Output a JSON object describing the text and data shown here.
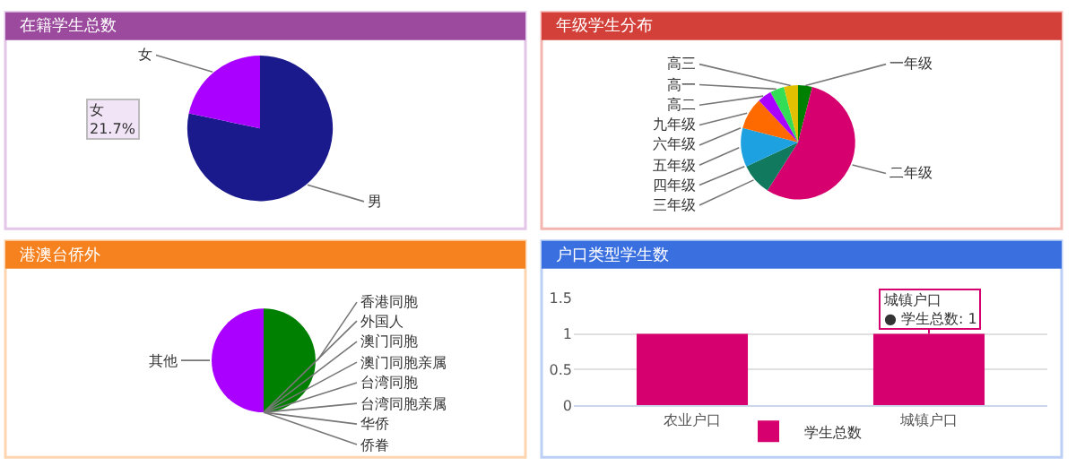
{
  "chart_data": [
    {
      "type": "pie",
      "title": "在籍学生总数",
      "categories": [
        "男",
        "女"
      ],
      "values": [
        78.3,
        21.7
      ],
      "colors": [
        "#1a1a8c",
        "#aa00ff"
      ],
      "annotations": [
        "女\n21.7%"
      ]
    },
    {
      "type": "pie",
      "title": "年级学生分布",
      "categories": [
        "一年级",
        "二年级",
        "三年级",
        "四年级",
        "五年级",
        "六年级",
        "九年级",
        "高二",
        "高一",
        "高三"
      ],
      "values": [
        4,
        55,
        9,
        0,
        11,
        0,
        9,
        4,
        4,
        4
      ],
      "colors": [
        "#008000",
        "#d6006e",
        "#117a5e",
        "#5b2c8e",
        "#1ea1e0",
        "#c0c0c0",
        "#ff6a00",
        "#aa00ff",
        "#33dd55",
        "#e0c000"
      ]
    },
    {
      "type": "pie",
      "title": "港澳台侨外",
      "categories": [
        "香港同胞",
        "外国人",
        "澳门同胞",
        "澳门同胞亲属",
        "台湾同胞",
        "台湾同胞亲属",
        "华侨",
        "侨眷",
        "其他"
      ],
      "values": [
        50,
        0,
        0,
        0,
        0,
        0,
        0,
        0,
        50
      ],
      "colors": [
        "#008000",
        "#1ea1e0",
        "#ff6a00",
        "#e0c000",
        "#117a5e",
        "#5b2c8e",
        "#33dd55",
        "#c0c0c0",
        "#aa00ff"
      ]
    },
    {
      "type": "bar",
      "title": "户口类型学生数",
      "categories": [
        "农业户口",
        "城镇户口"
      ],
      "series": [
        {
          "name": "学生总数",
          "color": "#d6006e",
          "values": [
            1,
            1
          ]
        }
      ],
      "ylim": [
        0,
        1.5
      ],
      "yticks": [
        0,
        0.5,
        1,
        1.5
      ],
      "grid": "y",
      "legend": "bottom",
      "annotations": [
        {
          "text": "城镇户口\n● 学生总数: 1",
          "x": "城镇户口",
          "y": 1
        }
      ]
    }
  ]
}
